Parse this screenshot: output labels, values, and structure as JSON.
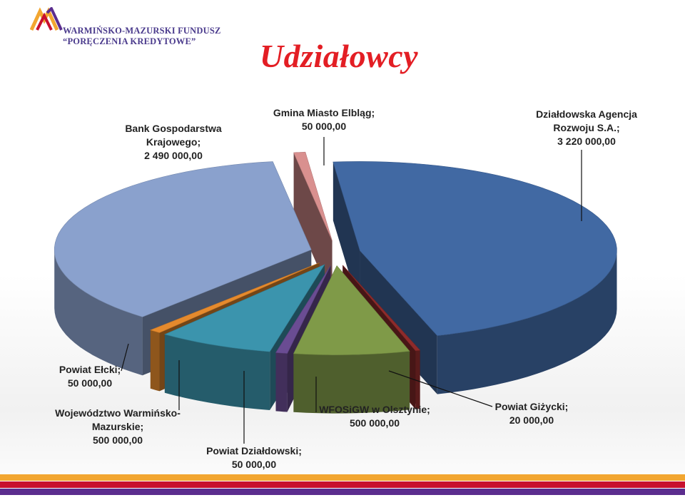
{
  "header": {
    "logo_line1": "WARMIŃSKO-MAZURSKI FUNDUSZ",
    "logo_line2": "“PORĘCZENIA KREDYTOWE”",
    "title": "Udziałowcy"
  },
  "colors": {
    "title": "#e31e24",
    "logo_purple": "#4a3a8c",
    "stripe_orange": "#f2a630",
    "stripe_red": "#c8102e",
    "stripe_purple": "#5b2d8e"
  },
  "chart_data": {
    "type": "pie",
    "style": "3d-exploded",
    "series": [
      {
        "values": [
          {
            "label": "Działdowska Agencja Rozwoju S.A.",
            "value": 3220000,
            "value_text": "3 220 000,00",
            "color": "#4169a3"
          },
          {
            "label": "Powiat Giżycki",
            "value": 20000,
            "value_text": "20 000,00",
            "color": "#8e2b2b"
          },
          {
            "label": "WFOSiGW w Olsztynie",
            "value": 500000,
            "value_text": "500 000,00",
            "color": "#7f9a48"
          },
          {
            "label": "Powiat Działdowski",
            "value": 50000,
            "value_text": "50 000,00",
            "color": "#6a4c93"
          },
          {
            "label": "Województwo Warmińsko-Mazurskie",
            "value": 500000,
            "value_text": "500 000,00",
            "color": "#3b94ad"
          },
          {
            "label": "Powiat Ełcki",
            "value": 50000,
            "value_text": "50 000,00",
            "color": "#e58a2d"
          },
          {
            "label": "Bank Gospodarstwa Krajowego",
            "value": 2490000,
            "value_text": "2 490 000,00",
            "color": "#8aa1cd"
          },
          {
            "label": "Gmina Miasto Elbląg",
            "value": 50000,
            "value_text": "50 000,00",
            "color": "#d9908f"
          }
        ]
      }
    ],
    "data_labels": [
      {
        "lines": [
          "Działdowska Agencja",
          "Rozwoju S.A.;",
          "3 220 000,00"
        ]
      },
      {
        "lines": [
          "Powiat Giżycki;",
          "20 000,00"
        ]
      },
      {
        "lines": [
          "WFOSiGW w Olsztynie;",
          "500 000,00"
        ]
      },
      {
        "lines": [
          "Powiat Działdowski;",
          "50 000,00"
        ]
      },
      {
        "lines": [
          "Województwo Warmińsko-",
          "Mazurskie;",
          "500 000,00"
        ]
      },
      {
        "lines": [
          "Powiat Ełcki;",
          "50 000,00"
        ]
      },
      {
        "lines": [
          "Bank Gospodarstwa",
          "Krajowego;",
          "2 490 000,00"
        ]
      },
      {
        "lines": [
          "Gmina Miasto Elbląg;",
          "50 000,00"
        ]
      }
    ]
  }
}
